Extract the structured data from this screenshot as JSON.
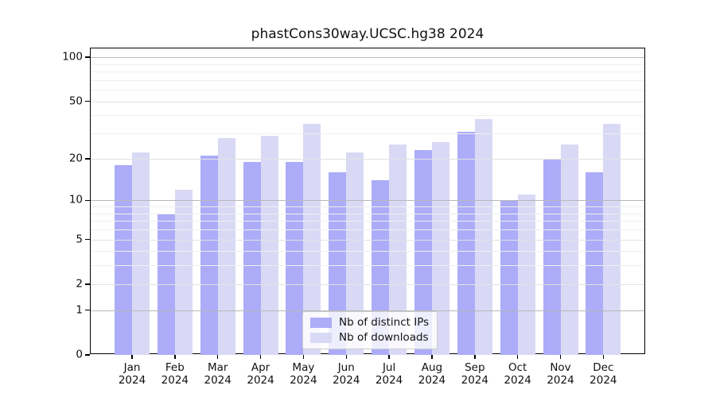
{
  "title": "phastCons30way.UCSC.hg38 2024",
  "chart_data": {
    "type": "bar",
    "title": "phastCons30way.UCSC.hg38 2024",
    "y_scale": "log(1+x)",
    "grid": true,
    "legend_position": "lower center",
    "categories": [
      "Jan",
      "Feb",
      "Mar",
      "Apr",
      "May",
      "Jun",
      "Jul",
      "Aug",
      "Sep",
      "Oct",
      "Nov",
      "Dec"
    ],
    "year": "2024",
    "series": [
      {
        "name": "Nb of distinct IPs",
        "color": "#acacf8",
        "values": [
          18,
          8,
          21,
          19,
          19,
          16,
          14,
          23,
          31,
          10,
          20,
          16
        ]
      },
      {
        "name": "Nb of downloads",
        "color": "#d9d9f6",
        "values": [
          22,
          12,
          28,
          29,
          35,
          22,
          25,
          26,
          38,
          11,
          25,
          35
        ]
      }
    ],
    "yticks": [
      0,
      1,
      2,
      5,
      10,
      20,
      50,
      100
    ],
    "decade_gridlines": [
      1,
      10,
      100
    ],
    "labeled_gridlines": [
      2,
      5,
      20,
      50
    ],
    "minor_gridlines": [
      3,
      4,
      6,
      7,
      8,
      9,
      30,
      40,
      60,
      70,
      80,
      90
    ],
    "ylim": [
      0,
      115
    ],
    "xlabel": "",
    "ylabel": ""
  },
  "legend": {
    "items": [
      {
        "label": "Nb of distinct IPs"
      },
      {
        "label": "Nb of downloads"
      }
    ]
  }
}
